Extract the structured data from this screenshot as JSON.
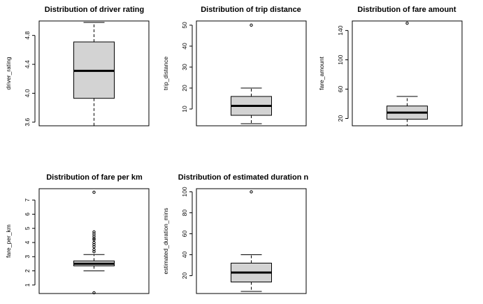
{
  "chart_data": [
    {
      "type": "box",
      "title": "Distribution of driver rating",
      "ylabel": "driver_rating",
      "ylim": [
        3.55,
        5.0
      ],
      "yticks": [
        3.6,
        4.0,
        4.4,
        4.8
      ],
      "ytick_labels": [
        "3.6",
        "4.0",
        "4.4",
        "4.8"
      ],
      "min": 3.55,
      "q1": 3.93,
      "median": 4.31,
      "q3": 4.71,
      "max": 4.98,
      "outliers": []
    },
    {
      "type": "box",
      "title": "Distribution of trip distance",
      "ylabel": "trip_distance",
      "ylim": [
        2,
        52
      ],
      "yticks": [
        10,
        20,
        30,
        40,
        50
      ],
      "ytick_labels": [
        "10",
        "20",
        "30",
        "40",
        "50"
      ],
      "min": 3,
      "q1": 7,
      "median": 11.5,
      "q3": 16,
      "max": 20,
      "outliers": [
        50
      ]
    },
    {
      "type": "box",
      "title": "Distribution of fare amount",
      "ylabel": "fare_amount",
      "ylim": [
        10,
        153
      ],
      "yticks": [
        20,
        60,
        100,
        140
      ],
      "ytick_labels": [
        "20",
        "60",
        "100",
        "140"
      ],
      "min": 10,
      "q1": 19,
      "median": 28,
      "q3": 37,
      "max": 50,
      "outliers": [
        150
      ]
    },
    {
      "type": "box",
      "title": "Distribution of fare per km",
      "ylabel": "fare_per_km",
      "ylim": [
        0.4,
        7.8
      ],
      "yticks": [
        1,
        2,
        3,
        4,
        5,
        6,
        7
      ],
      "ytick_labels": [
        "1",
        "2",
        "3",
        "4",
        "5",
        "6",
        "7"
      ],
      "min": 2.0,
      "q1": 2.35,
      "median": 2.5,
      "q3": 2.7,
      "max": 3.15,
      "outliers": [
        0.45,
        3.35,
        3.5,
        3.7,
        3.85,
        4.0,
        4.2,
        4.3,
        4.45,
        4.6,
        4.75,
        7.55
      ]
    },
    {
      "type": "box",
      "title": "Distribution of estimated duration n",
      "ylabel": "estimated_duration_mins",
      "ylim": [
        3,
        103
      ],
      "yticks": [
        20,
        40,
        60,
        80,
        100
      ],
      "ytick_labels": [
        "20",
        "40",
        "60",
        "80",
        "100"
      ],
      "min": 5,
      "q1": 14,
      "median": 23,
      "q3": 32,
      "max": 40,
      "outliers": [
        100
      ]
    }
  ]
}
